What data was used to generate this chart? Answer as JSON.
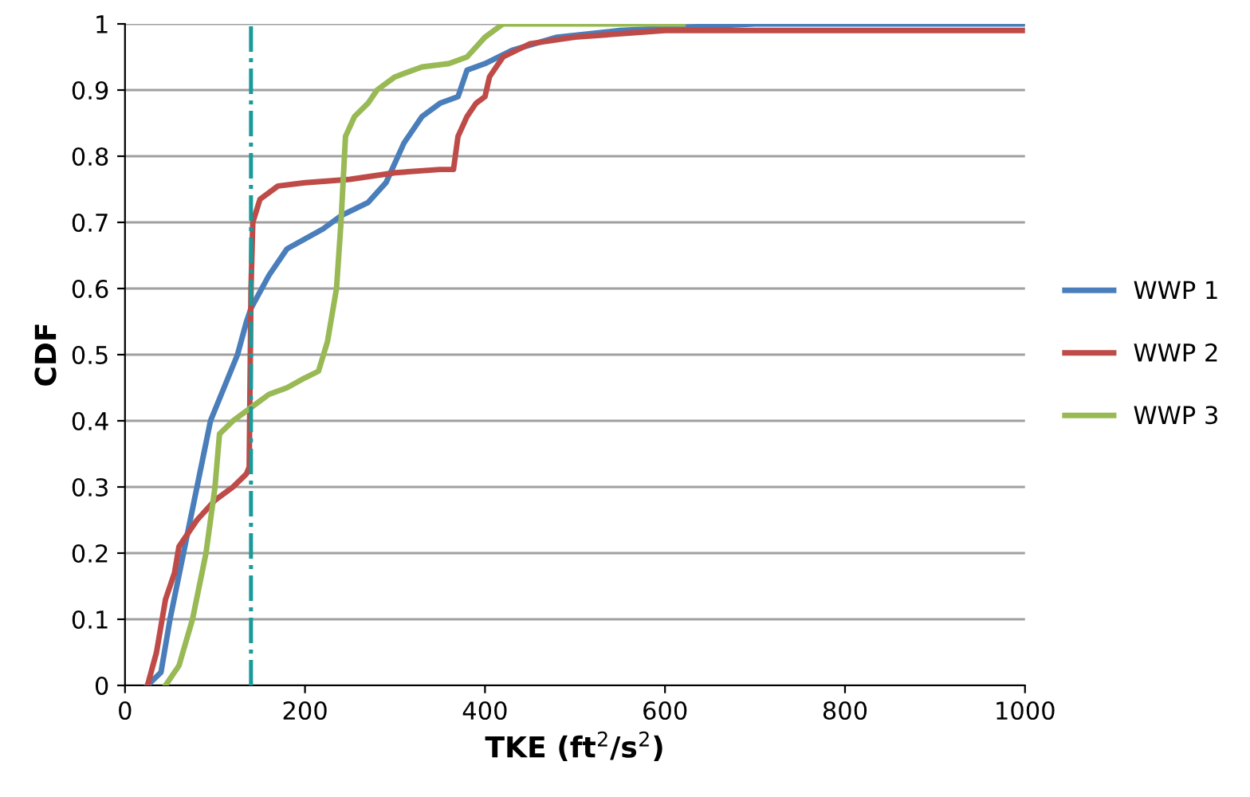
{
  "chart_data": {
    "type": "line",
    "xlabel": "TKE (ft$^{2}$/s$^{2}$)",
    "ylabel": "CDF",
    "xlim": [
      0,
      1000
    ],
    "xticks": [
      0,
      200,
      400,
      600,
      800,
      1000
    ],
    "ylim": [
      0,
      1
    ],
    "yticks": [
      0,
      {
        "value": 0.1,
        "label": "0.1"
      },
      {
        "value": 0.2,
        "label": "0.2"
      },
      {
        "value": 0.3,
        "label": "0.3"
      },
      {
        "value": 0.4,
        "label": "0.4"
      },
      {
        "value": 0.5,
        "label": "0.5"
      },
      {
        "value": 0.6,
        "label": "0.6"
      },
      {
        "value": 0.7,
        "label": "0.7"
      },
      {
        "value": 0.8,
        "label": "0.8"
      },
      {
        "value": 0.9,
        "label": "0.9"
      },
      1
    ],
    "grid": "y",
    "legend": "right",
    "marker": "none",
    "line_style": "solid",
    "ref_lines": [
      {
        "axis": "x",
        "value": 140,
        "color": "#1a9a9a",
        "line_style": "dashdot"
      }
    ],
    "series": [
      {
        "name": "WWP 1",
        "color": "#4a7ebb",
        "x": [
          25,
          40,
          50,
          65,
          80,
          95,
          110,
          125,
          135,
          140,
          160,
          180,
          200,
          220,
          240,
          270,
          290,
          310,
          330,
          350,
          370,
          380,
          400,
          430,
          480,
          550,
          700,
          1000
        ],
        "values": [
          0,
          0.02,
          0.1,
          0.2,
          0.3,
          0.4,
          0.45,
          0.5,
          0.55,
          0.57,
          0.62,
          0.66,
          0.675,
          0.69,
          0.71,
          0.73,
          0.76,
          0.82,
          0.86,
          0.88,
          0.89,
          0.93,
          0.94,
          0.96,
          0.98,
          0.99,
          1.0,
          1.0
        ]
      },
      {
        "name": "WWP 2",
        "color": "#be4b48",
        "x": [
          25,
          35,
          45,
          55,
          60,
          80,
          100,
          120,
          135,
          138,
          140,
          142,
          150,
          170,
          200,
          250,
          300,
          350,
          365,
          370,
          380,
          390,
          400,
          405,
          420,
          450,
          500,
          600,
          1000
        ],
        "values": [
          0,
          0.05,
          0.13,
          0.17,
          0.21,
          0.25,
          0.28,
          0.3,
          0.32,
          0.33,
          0.6,
          0.7,
          0.735,
          0.755,
          0.76,
          0.765,
          0.775,
          0.78,
          0.78,
          0.83,
          0.86,
          0.88,
          0.89,
          0.92,
          0.95,
          0.97,
          0.98,
          0.99,
          0.99
        ]
      },
      {
        "name": "WWP 3",
        "color": "#98b954",
        "x": [
          45,
          60,
          75,
          90,
          100,
          105,
          120,
          140,
          160,
          180,
          200,
          215,
          225,
          235,
          240,
          245,
          255,
          270,
          280,
          300,
          330,
          360,
          380,
          400,
          420,
          620
        ],
        "values": [
          0,
          0.03,
          0.1,
          0.2,
          0.3,
          0.38,
          0.4,
          0.42,
          0.44,
          0.45,
          0.465,
          0.475,
          0.52,
          0.6,
          0.7,
          0.83,
          0.86,
          0.88,
          0.9,
          0.92,
          0.935,
          0.94,
          0.95,
          0.98,
          1.0,
          1.0
        ]
      }
    ]
  }
}
